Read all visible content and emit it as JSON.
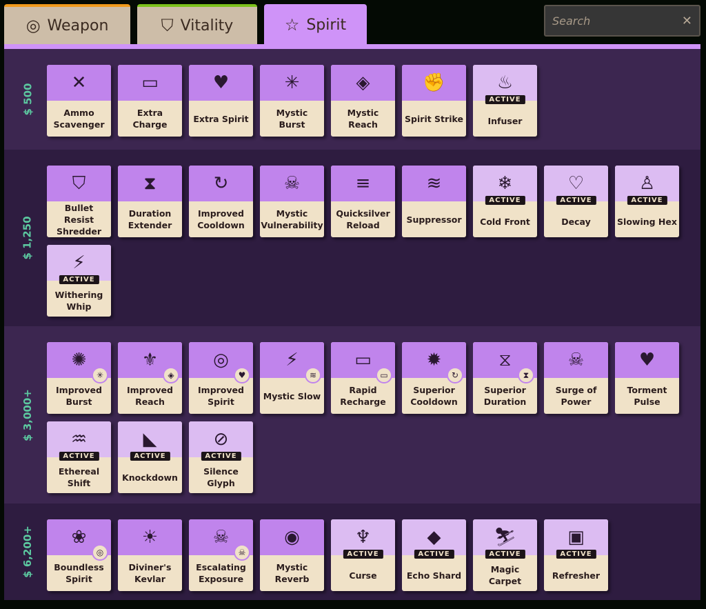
{
  "tabs": [
    {
      "label": "Weapon",
      "icon": "weapon-icon",
      "accent": "#f09a1c"
    },
    {
      "label": "Vitality",
      "icon": "vitality-shield-icon",
      "accent": "#7cc21c"
    },
    {
      "label": "Spirit",
      "icon": "spirit-star-icon",
      "accent": "#cf93f8"
    }
  ],
  "active_tab": "Spirit",
  "search": {
    "placeholder": "Search",
    "value": ""
  },
  "active_label": "ACTIVE",
  "tiers": [
    {
      "price": "$ 500",
      "items": [
        {
          "name": "Ammo Scavenger",
          "icon": "✕"
        },
        {
          "name": "Extra Charge",
          "icon": "▭"
        },
        {
          "name": "Extra Spirit",
          "icon": "♥"
        },
        {
          "name": "Mystic Burst",
          "icon": "✳"
        },
        {
          "name": "Mystic Reach",
          "icon": "◈"
        },
        {
          "name": "Spirit Strike",
          "icon": "✊"
        },
        {
          "name": "Infuser",
          "icon": "♨",
          "active": true
        }
      ]
    },
    {
      "price": "$ 1,250",
      "items": [
        {
          "name": "Bullet Resist Shredder",
          "icon": "⛉"
        },
        {
          "name": "Duration Extender",
          "icon": "⧗"
        },
        {
          "name": "Improved Cooldown",
          "icon": "↻"
        },
        {
          "name": "Mystic Vulnerability",
          "icon": "☠"
        },
        {
          "name": "Quicksilver Reload",
          "icon": "≡"
        },
        {
          "name": "Suppressor",
          "icon": "≋"
        },
        {
          "name": "Cold Front",
          "icon": "❄",
          "active": true
        },
        {
          "name": "Decay",
          "icon": "♡",
          "active": true
        },
        {
          "name": "Slowing Hex",
          "icon": "♙",
          "active": true
        },
        {
          "name": "Withering Whip",
          "icon": "⚡",
          "active": true
        }
      ]
    },
    {
      "price": "$ 3,000+",
      "items": [
        {
          "name": "Improved Burst",
          "icon": "✺",
          "badge": "✳"
        },
        {
          "name": "Improved Reach",
          "icon": "⚜",
          "badge": "◈"
        },
        {
          "name": "Improved Spirit",
          "icon": "◎",
          "badge": "♥"
        },
        {
          "name": "Mystic Slow",
          "icon": "⚡",
          "badge": "≋"
        },
        {
          "name": "Rapid Recharge",
          "icon": "▭",
          "badge": "▭"
        },
        {
          "name": "Superior Cooldown",
          "icon": "✹",
          "badge": "↻"
        },
        {
          "name": "Superior Duration",
          "icon": "⧖",
          "badge": "⧗"
        },
        {
          "name": "Surge of Power",
          "icon": "☠"
        },
        {
          "name": "Torment Pulse",
          "icon": "♥"
        },
        {
          "name": "Ethereal Shift",
          "icon": "♒",
          "active": true
        },
        {
          "name": "Knockdown",
          "icon": "◣",
          "active": true
        },
        {
          "name": "Silence Glyph",
          "icon": "⊘",
          "active": true
        }
      ]
    },
    {
      "price": "$ 6,200+",
      "items": [
        {
          "name": "Boundless Spirit",
          "icon": "❀",
          "badge": "◎"
        },
        {
          "name": "Diviner's Kevlar",
          "icon": "☀"
        },
        {
          "name": "Escalating Exposure",
          "icon": "☠",
          "badge": "☠"
        },
        {
          "name": "Mystic Reverb",
          "icon": "◉"
        },
        {
          "name": "Curse",
          "icon": "♆",
          "active": true
        },
        {
          "name": "Echo Shard",
          "icon": "◆",
          "active": true
        },
        {
          "name": "Magic Carpet",
          "icon": "⛷",
          "active": true
        },
        {
          "name": "Refresher",
          "icon": "▣",
          "active": true
        }
      ]
    }
  ]
}
